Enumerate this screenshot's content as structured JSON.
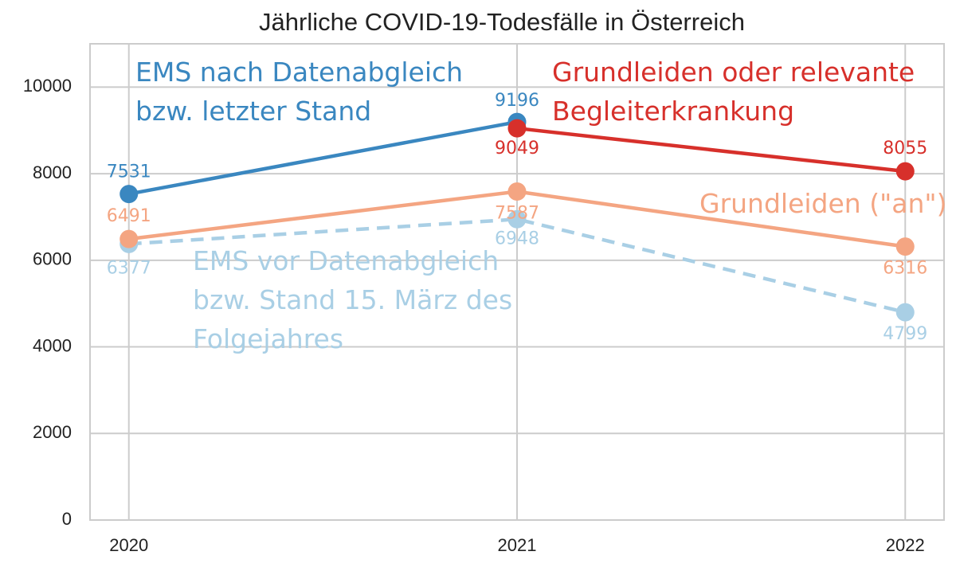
{
  "chart_data": {
    "type": "line",
    "title": "Jährliche COVID-19-Todesfälle in Österreich",
    "x": [
      2020,
      2021,
      2022
    ],
    "xlim": [
      2019.9,
      2022.1
    ],
    "xticks": [
      2020,
      2021,
      2022
    ],
    "ylim": [
      0,
      11000
    ],
    "yticks": [
      0,
      2000,
      4000,
      6000,
      8000,
      10000
    ],
    "grid": true,
    "series": [
      {
        "name": "EMS nach Datenabgleich\nbzw. letzter Stand",
        "color": "#3a87c0",
        "linestyle": "solid",
        "values": [
          7531,
          9196,
          null
        ]
      },
      {
        "name": "Grundleiden oder relevante\nBegleiterkrankung",
        "color": "#d7302b",
        "linestyle": "solid",
        "values": [
          null,
          9049,
          8055
        ]
      },
      {
        "name": "Grundleiden (\"an\")",
        "color": "#f4a582",
        "linestyle": "solid",
        "values": [
          6491,
          7587,
          6316
        ]
      },
      {
        "name": "EMS vor Datenabgleich\nbzw. Stand 15. März des\nFolgejahres",
        "color": "#a9cfe5",
        "linestyle": "dashed",
        "values": [
          6377,
          6948,
          4799
        ]
      }
    ]
  }
}
